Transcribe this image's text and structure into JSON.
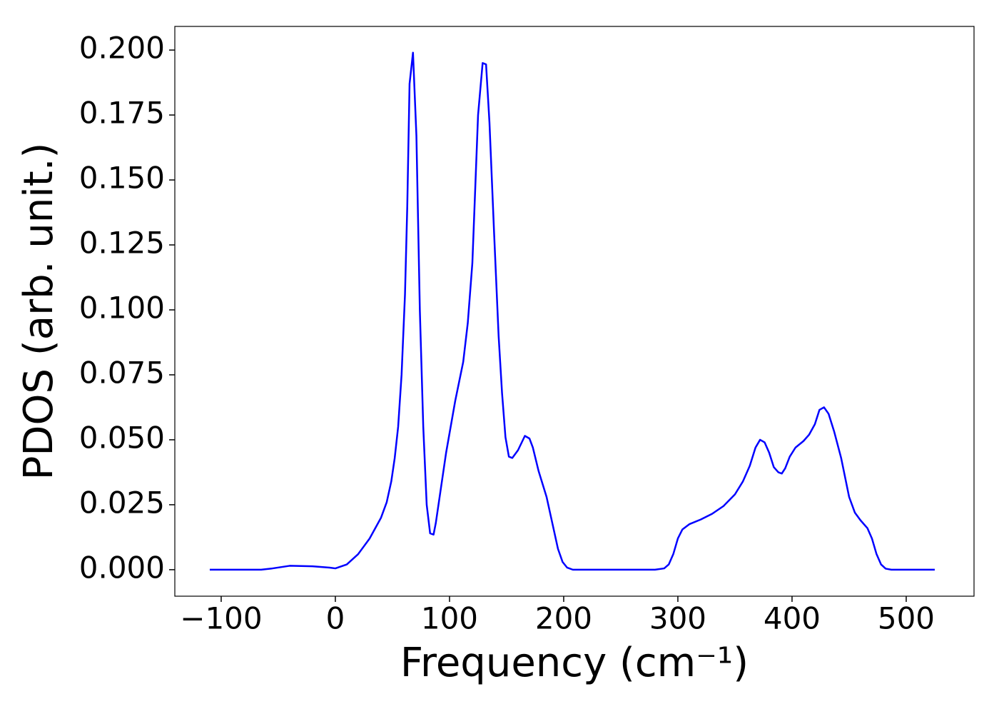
{
  "chart_data": {
    "type": "line",
    "x_label": "Frequency (cm⁻¹)",
    "y_label": "PDOS (arb. unit.)",
    "x": [
      -110,
      -65,
      -55,
      -40,
      -20,
      -5,
      0,
      10,
      20,
      30,
      40,
      45,
      49,
      52,
      55,
      58,
      61,
      63,
      65,
      68,
      71,
      74,
      77,
      80,
      83,
      86,
      88,
      92,
      97,
      105,
      112,
      116,
      120,
      125,
      129,
      132,
      135,
      139,
      143,
      146,
      149,
      152,
      155,
      160,
      166,
      170,
      173,
      178,
      185,
      190,
      195,
      199,
      203,
      208,
      280,
      288,
      292,
      296,
      300,
      304,
      310,
      320,
      330,
      340,
      350,
      357,
      363,
      368,
      372,
      376,
      380,
      384,
      388,
      391,
      394,
      398,
      403,
      410,
      415,
      420,
      424,
      428,
      432,
      437,
      443,
      450,
      455,
      460,
      466,
      470,
      474,
      478,
      482,
      487,
      525
    ],
    "series": [
      {
        "color": "#0000ff",
        "values": [
          0,
          0,
          0.0005,
          0.0015,
          0.0013,
          0.0008,
          0.0005,
          0.002,
          0.006,
          0.012,
          0.02,
          0.026,
          0.034,
          0.043,
          0.055,
          0.075,
          0.106,
          0.14,
          0.187,
          0.199,
          0.167,
          0.1,
          0.055,
          0.025,
          0.014,
          0.0135,
          0.018,
          0.03,
          0.045,
          0.065,
          0.08,
          0.095,
          0.118,
          0.175,
          0.195,
          0.1945,
          0.172,
          0.13,
          0.09,
          0.068,
          0.051,
          0.0435,
          0.043,
          0.046,
          0.0515,
          0.0505,
          0.047,
          0.038,
          0.028,
          0.018,
          0.008,
          0.003,
          0.0008,
          0,
          0,
          0.0005,
          0.002,
          0.006,
          0.012,
          0.0155,
          0.0175,
          0.0193,
          0.0215,
          0.0245,
          0.029,
          0.034,
          0.04,
          0.047,
          0.05,
          0.049,
          0.045,
          0.0395,
          0.0375,
          0.037,
          0.039,
          0.0435,
          0.047,
          0.0495,
          0.052,
          0.056,
          0.0615,
          0.0625,
          0.06,
          0.053,
          0.043,
          0.028,
          0.022,
          0.019,
          0.016,
          0.012,
          0.006,
          0.002,
          0.0004,
          0,
          0
        ]
      }
    ],
    "xlim": [
      -140.6,
      559.4
    ],
    "ylim": [
      -0.0102,
      0.2091
    ],
    "xticks": [
      {
        "value": -100,
        "label": "−100"
      },
      0,
      100,
      200,
      300,
      400,
      500
    ],
    "yticks": [
      {
        "value": 0,
        "label": "0.000"
      },
      {
        "value": 0.025,
        "label": "0.025"
      },
      {
        "value": 0.05,
        "label": "0.050"
      },
      {
        "value": 0.075,
        "label": "0.075"
      },
      {
        "value": 0.1,
        "label": "0.100"
      },
      {
        "value": 0.125,
        "label": "0.125"
      },
      {
        "value": 0.15,
        "label": "0.150"
      },
      {
        "value": 0.175,
        "label": "0.175"
      },
      {
        "value": 0.2,
        "label": "0.200"
      }
    ],
    "grid": false
  }
}
